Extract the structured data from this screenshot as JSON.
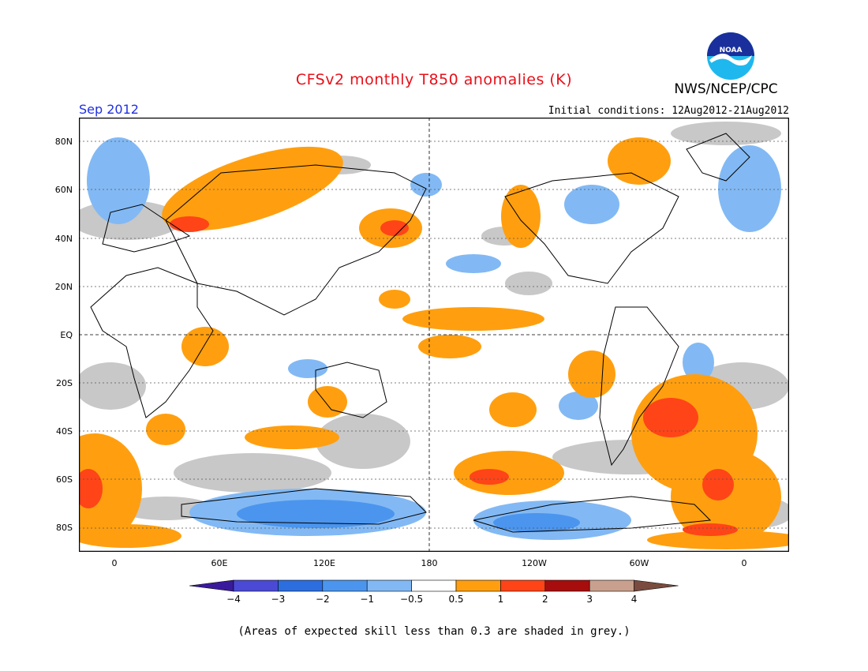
{
  "header": {
    "title": "CFSv2 monthly T850 anomalies (K)",
    "agency": "NWS/NCEP/CPC",
    "logo_text": "NOAA",
    "month": "Sep 2012",
    "initial_conditions": "Initial conditions: 12Aug2012-21Aug2012"
  },
  "axes": {
    "lat_labels": [
      "80N",
      "60N",
      "40N",
      "20N",
      "EQ",
      "20S",
      "40S",
      "60S",
      "80S"
    ],
    "lon_labels": [
      "0",
      "60E",
      "120E",
      "180",
      "120W",
      "60W",
      "0"
    ]
  },
  "legend": {
    "colors": [
      "#3a1a9c",
      "#4a4ad6",
      "#2c6ee0",
      "#4b95ee",
      "#82b9f4",
      "#ffffff",
      "#ff9f0f",
      "#ff4418",
      "#a80d0d",
      "#c9a08e",
      "#7a4b3e"
    ],
    "grey_color": "#c8c8c8",
    "labels": [
      "−4",
      "−3",
      "−2",
      "−1",
      "−0.5",
      "0.5",
      "1",
      "2",
      "3",
      "4"
    ]
  },
  "footer": {
    "note": "(Areas of expected skill less than 0.3 are shaded in grey.)"
  }
}
